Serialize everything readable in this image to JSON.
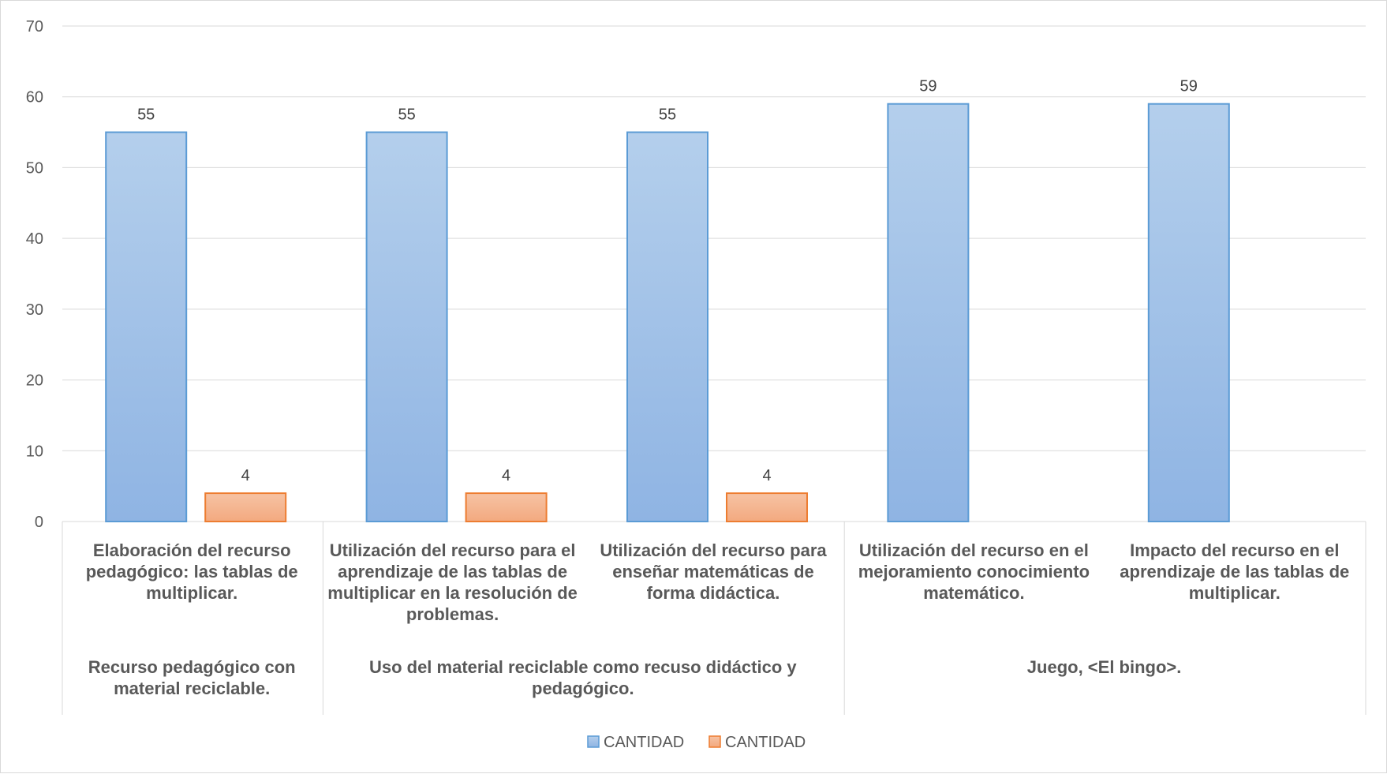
{
  "chart_data": {
    "type": "bar",
    "categories": [
      "Elaboración  del recurso pedagógico: las tablas  de multiplicar.",
      "Utilización  del recurso para el aprendizaje de las tablas de multiplicar en la resolución de problemas.",
      "Utilización del recurso para enseñar matemáticas de forma didáctica.",
      "Utilización del recurso en el mejoramiento  conocimiento matemático.",
      "Impacto del recurso en el aprendizaje de las tablas de multiplicar."
    ],
    "groups": [
      {
        "label": "Recurso pedagógico con material reciclable.",
        "span": [
          0,
          0
        ]
      },
      {
        "label": "Uso del material reciclable como recuso didáctico y pedagógico.",
        "span": [
          1,
          2
        ]
      },
      {
        "label": "Juego, <El bingo>.",
        "span": [
          3,
          4
        ]
      }
    ],
    "series": [
      {
        "name": "CANTIDAD",
        "color": "#9dc3e6",
        "values": [
          55,
          55,
          55,
          59,
          59
        ],
        "labels": [
          "55",
          "55",
          "55",
          "59",
          "59"
        ]
      },
      {
        "name": "CANTIDAD",
        "color": "#f4b183",
        "values": [
          4,
          4,
          4,
          null,
          null
        ],
        "labels": [
          "4",
          "4",
          "4",
          "",
          ""
        ]
      }
    ],
    "yticks": [
      "0",
      "10",
      "20",
      "30",
      "40",
      "50",
      "60",
      "70"
    ],
    "ylim": [
      0,
      70
    ],
    "grid": true,
    "legend_position": "bottom"
  }
}
